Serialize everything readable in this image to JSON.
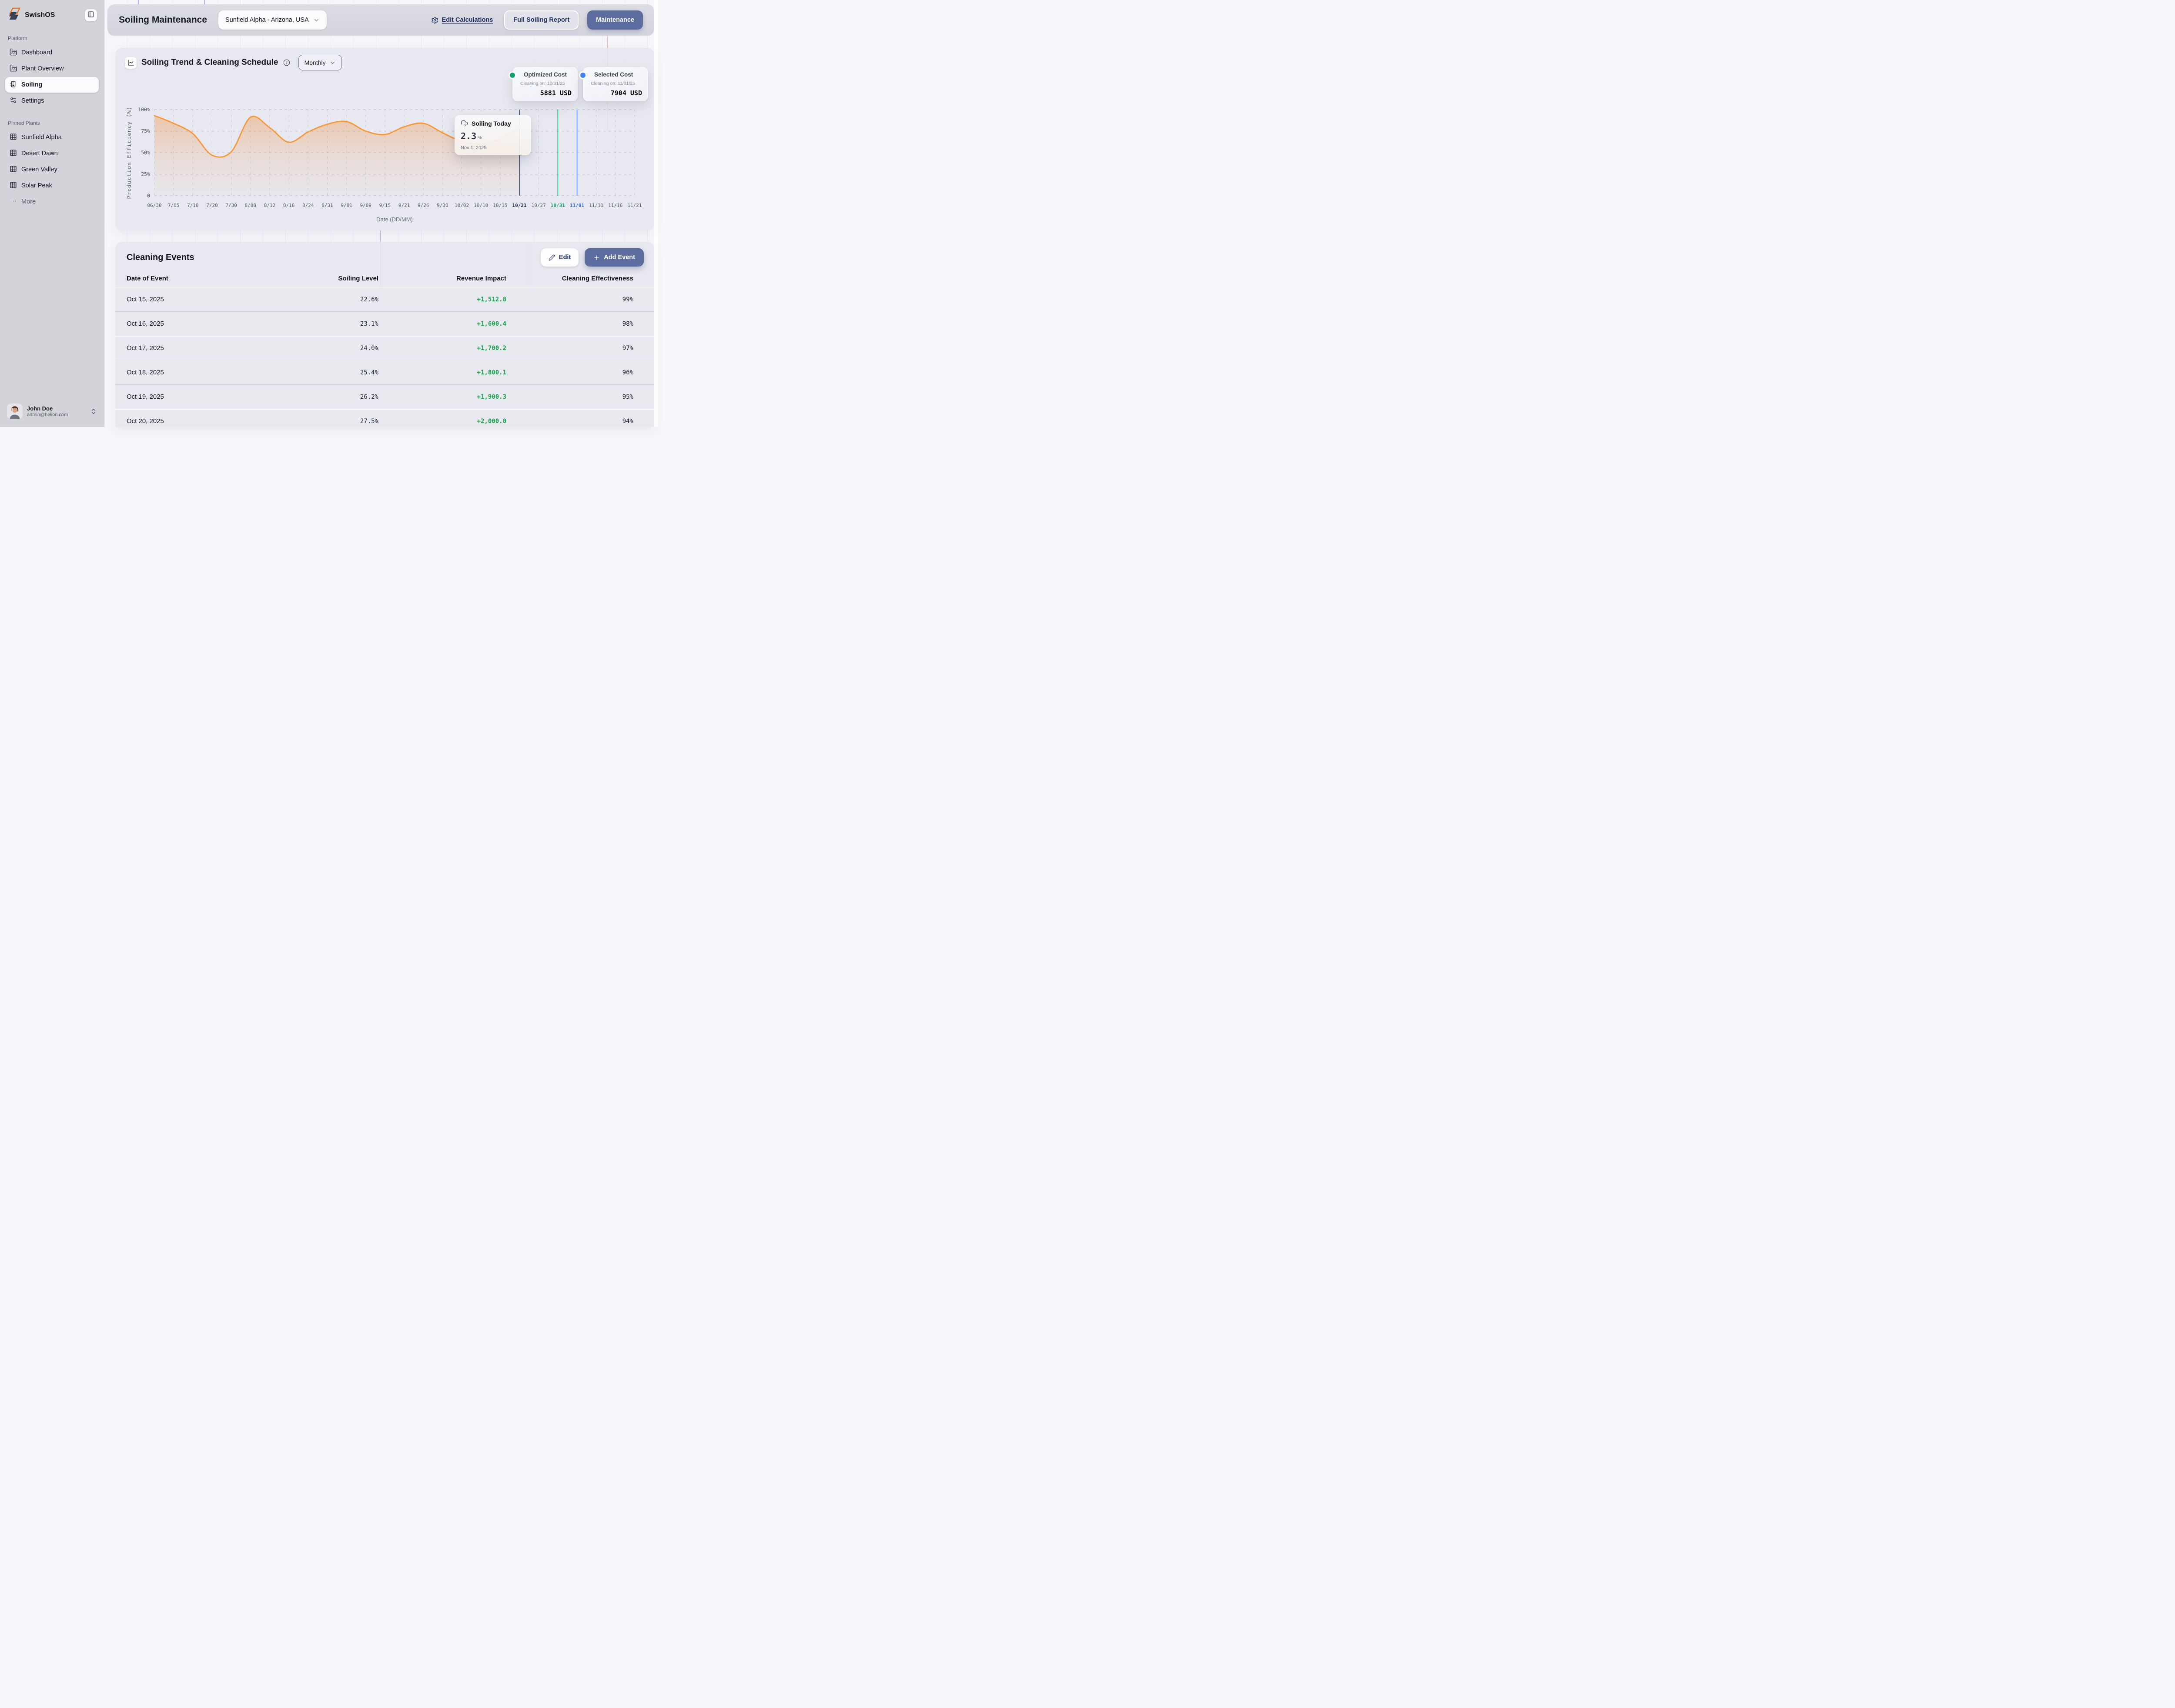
{
  "app": {
    "brand": "SwishOS"
  },
  "sidebar": {
    "platform_label": "Platform",
    "nav": [
      {
        "label": "Dashboard",
        "icon": "factory",
        "active": false
      },
      {
        "label": "Plant Overview",
        "icon": "factory",
        "active": false
      },
      {
        "label": "Soiling",
        "icon": "scrubber",
        "active": true
      },
      {
        "label": "Settings",
        "icon": "sliders",
        "active": false
      }
    ],
    "pinned_label": "Pinned Plants",
    "pinned": [
      {
        "label": "Sunfield Alpha",
        "icon": "solar-grid"
      },
      {
        "label": "Desert Dawn",
        "icon": "solar-grid"
      },
      {
        "label": "Green Valley",
        "icon": "solar-grid"
      },
      {
        "label": "Solar Peak",
        "icon": "solar-grid"
      }
    ],
    "more_label": "More",
    "user": {
      "name": "John Doe",
      "email": "admin@helion.com"
    }
  },
  "header": {
    "title": "Soiling Maintenance",
    "plant_selector": {
      "value": "Sunfield Alpha - Arizona, USA"
    },
    "edit_calculations": "Edit Calculations",
    "full_report": "Full Soiling Report",
    "maintenance": "Maintenance"
  },
  "chart_panel": {
    "title": "Soiling Trend & Cleaning Schedule",
    "period": "Monthly",
    "legend_cards": [
      {
        "label": "Optimized Cost",
        "dot_color": "#13a06b",
        "subtitle": "Cleaning on: 10/31/25",
        "value": "5881 USD"
      },
      {
        "label": "Selected Cost",
        "dot_color": "#3b82f6",
        "subtitle": "Cleaning on: 11/01/25",
        "value": "7904 USD"
      }
    ],
    "tooltip": {
      "title": "Soiling Today",
      "value": "2.3",
      "unit": "%",
      "date": "Nov 1, 2025"
    }
  },
  "chart_data": {
    "type": "area",
    "title": "Soiling Trend & Cleaning Schedule",
    "xlabel": "Date (DD/MM)",
    "ylabel": "Production Efficiency (%)",
    "ylim": [
      0,
      100
    ],
    "grid": true,
    "legend_position": "top-right",
    "yticks": [
      {
        "v": 0,
        "label": "0"
      },
      {
        "v": 25,
        "label": "25%"
      },
      {
        "v": 50,
        "label": "50%"
      },
      {
        "v": 75,
        "label": "75%"
      },
      {
        "v": 100,
        "label": "100%"
      }
    ],
    "categories": [
      "06/30",
      "7/05",
      "7/10",
      "7/20",
      "7/30",
      "8/08",
      "8/12",
      "8/16",
      "8/24",
      "8/31",
      "9/01",
      "9/09",
      "9/15",
      "9/21",
      "9/26",
      "9/30",
      "10/02",
      "10/10",
      "10/15",
      "10/21",
      "10/27",
      "10/31",
      "11/01",
      "11/11",
      "11/16",
      "11/21"
    ],
    "series": [
      {
        "name": "Production Efficiency",
        "color": "#f49a3e",
        "values": [
          93,
          84,
          72,
          47,
          51,
          91,
          79,
          62,
          74,
          83,
          86,
          75,
          71,
          80,
          84,
          73,
          63,
          60,
          66,
          79,
          null,
          null,
          null,
          null,
          null,
          null
        ]
      }
    ],
    "ref_lines": [
      {
        "category": "10/21",
        "color": "#39456b"
      },
      {
        "category": "10/31",
        "color": "#0ca76b"
      },
      {
        "category": "11/01",
        "color": "#2f6fed"
      }
    ],
    "highlight_ticks": {
      "10/21": "#232e52",
      "10/31": "#0ca76b",
      "11/01": "#2f6fed"
    }
  },
  "table": {
    "title": "Cleaning Events",
    "edit_label": "Edit",
    "add_label": "Add Event",
    "columns": [
      "Date of Event",
      "Soiling Level",
      "Revenue Impact",
      "Cleaning Effectiveness"
    ],
    "revenue_color": "#15a24a",
    "rows": [
      {
        "date": "Oct 15, 2025",
        "soiling": "22.6%",
        "revenue": "+1,512.8",
        "effectiveness": "99%"
      },
      {
        "date": "Oct 16, 2025",
        "soiling": "23.1%",
        "revenue": "+1,600.4",
        "effectiveness": "98%"
      },
      {
        "date": "Oct 17, 2025",
        "soiling": "24.0%",
        "revenue": "+1,700.2",
        "effectiveness": "97%"
      },
      {
        "date": "Oct 18, 2025",
        "soiling": "25.4%",
        "revenue": "+1,800.1",
        "effectiveness": "96%"
      },
      {
        "date": "Oct 19, 2025",
        "soiling": "26.2%",
        "revenue": "+1,900.3",
        "effectiveness": "95%"
      },
      {
        "date": "Oct 20, 2025",
        "soiling": "27.5%",
        "revenue": "+2,000.0",
        "effectiveness": "94%"
      }
    ]
  }
}
